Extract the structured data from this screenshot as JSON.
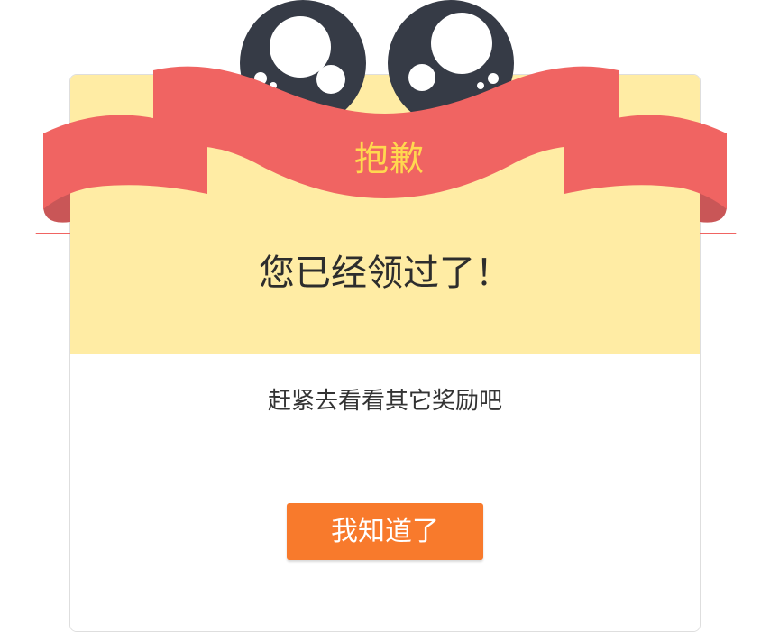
{
  "dialog": {
    "ribbon_title": "抱歉",
    "headline": "您已经领过了！",
    "subtext": "赶紧去看看其它奖励吧",
    "confirm_label": "我知道了"
  },
  "colors": {
    "ribbon": "#f06462",
    "ribbon_shadow": "#c95657",
    "eyes": "#363b46",
    "card_top": "#ffeca4",
    "title_text": "#ffd84f",
    "button": "#f87a2c"
  }
}
